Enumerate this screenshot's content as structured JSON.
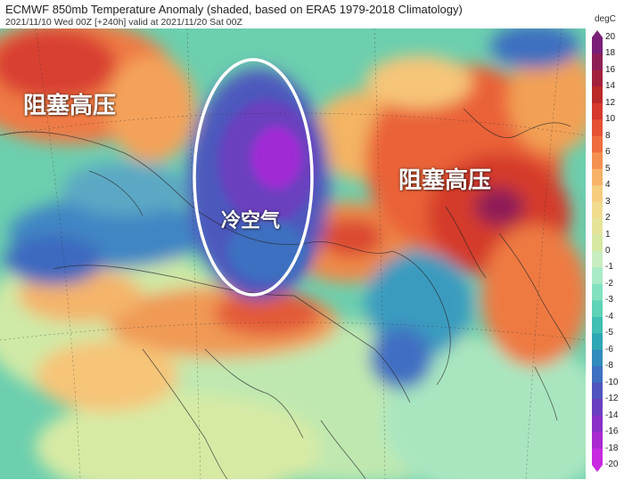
{
  "title": "ECMWF 850mb Temperature Anomaly (shaded, based on ERA5 1979-2018 Climatology)",
  "subtitle": "2021/11/10 Wed 00Z [+240h] valid at 2021/11/20 Sat 00Z",
  "annotations": {
    "blocking_high_left": "阻塞高压",
    "blocking_high_right": "阻塞高压",
    "cold_air": "冷空气"
  },
  "colorbar": {
    "unit": "degC",
    "range": [
      -20,
      20
    ],
    "ticks": [
      "20",
      "18",
      "16",
      "14",
      "12",
      "10",
      "8",
      "6",
      "5",
      "4",
      "3",
      "2",
      "1",
      "0",
      "-1",
      "-2",
      "-3",
      "-4",
      "-5",
      "-6",
      "-8",
      "-10",
      "-12",
      "-14",
      "-16",
      "-18",
      "-20"
    ],
    "colors": [
      "#7a1f78",
      "#8e1f56",
      "#a3213c",
      "#bb2a2a",
      "#d63a2c",
      "#e55234",
      "#ee6d3f",
      "#f49150",
      "#f7b268",
      "#f6cd7f",
      "#f0dc8e",
      "#e6e39a",
      "#d6e8a2",
      "#c8eec0",
      "#a9ebc6",
      "#82e2c0",
      "#5ed3b6",
      "#40bfb2",
      "#2fa6b4",
      "#318bbd",
      "#3e6fc0",
      "#4f55bd",
      "#6a3fbf",
      "#8a30c7",
      "#a82ad0",
      "#c72ae0"
    ]
  },
  "icons": {
    "cold_air_ellipse": "cold-air-outline-ellipse",
    "coastlines": "coastline-borders",
    "graticule": "lat-lon-grid"
  }
}
